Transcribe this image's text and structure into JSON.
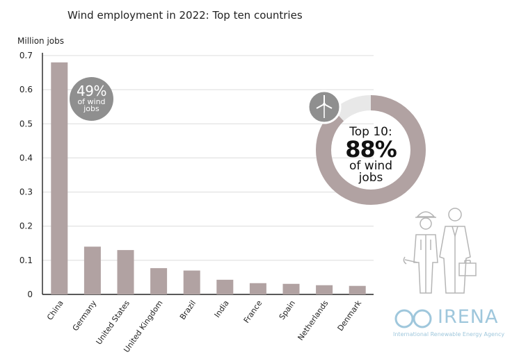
{
  "chart_data": {
    "type": "bar",
    "title": "Wind employment in 2022: Top ten countries",
    "ylabel": "Million jobs",
    "xlabel": "",
    "ylim": [
      0,
      0.7
    ],
    "yticks": [
      "0",
      "0.1",
      "0.2",
      "0.3",
      "0.4",
      "0.5",
      "0.6",
      "0.7"
    ],
    "categories": [
      "China",
      "Germany",
      "United States",
      "United Kingdom",
      "Brazil",
      "India",
      "France",
      "Spain",
      "Netherlands",
      "Denmark"
    ],
    "values": [
      0.68,
      0.14,
      0.13,
      0.077,
      0.07,
      0.043,
      0.033,
      0.031,
      0.027,
      0.025
    ],
    "bar_color": "#b1a2a2",
    "gridlines": true
  },
  "china_badge": {
    "pct": "49%",
    "line1": "of wind",
    "line2": "jobs",
    "color": "#8f8f8f"
  },
  "donut": {
    "share": 0.88,
    "line1": "Top 10:",
    "line2": "88%",
    "line3": "of wind",
    "line4": "jobs",
    "fill_color": "#b1a2a2",
    "rest_color": "#e8e8e8",
    "icon": "wind-turbine-icon"
  },
  "workers_illustration": {
    "icon": "workers-icon"
  },
  "logo": {
    "name": "IRENA",
    "subtitle": "International Renewable Energy Agency",
    "color": "#9fc7dc"
  }
}
